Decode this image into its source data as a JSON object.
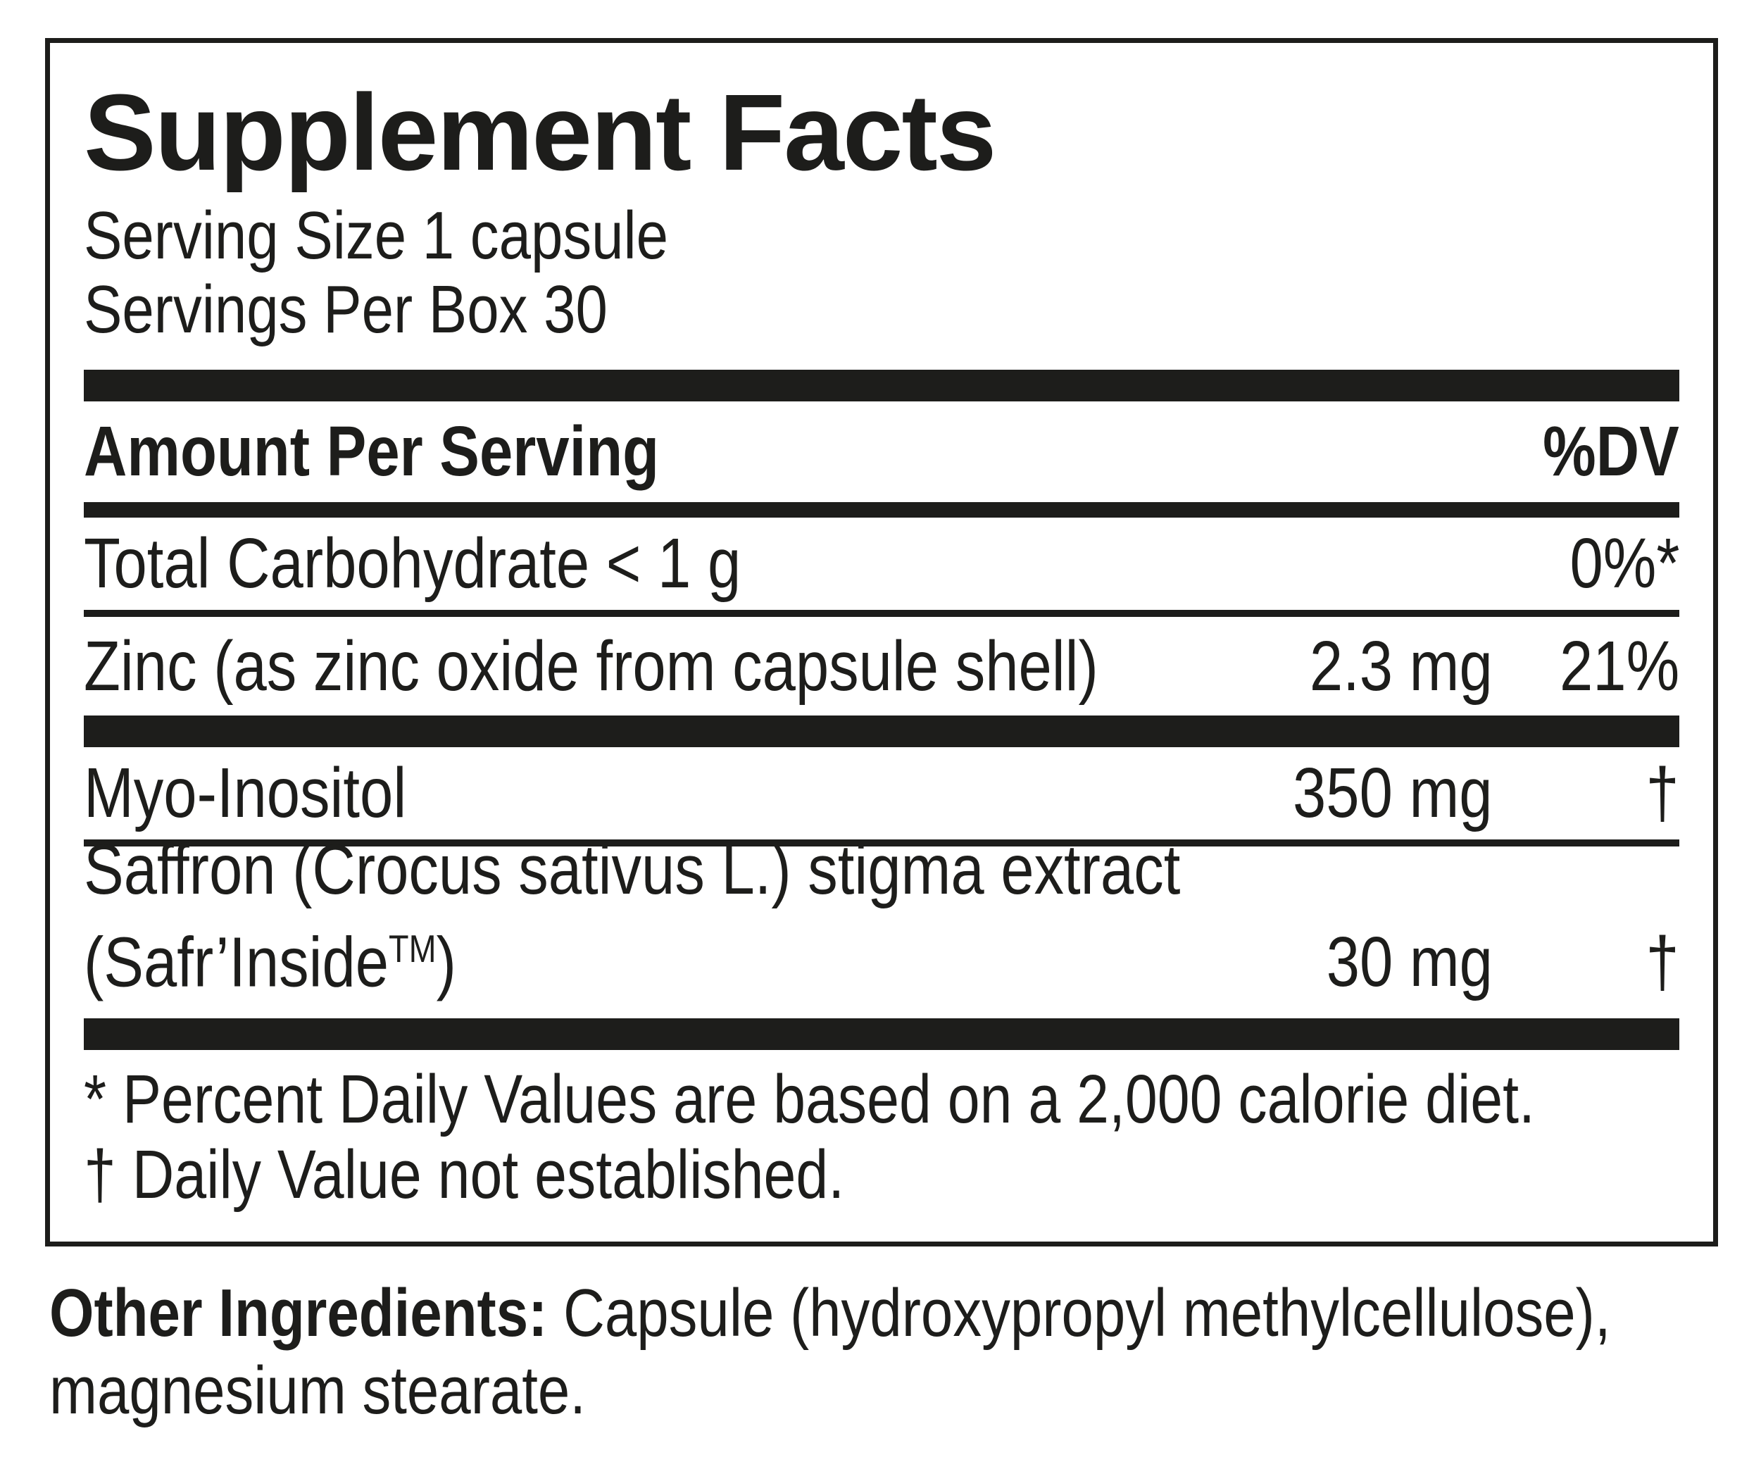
{
  "colors": {
    "ink": "#1d1d1b",
    "background": "#ffffff"
  },
  "panel": {
    "title": "Supplement Facts",
    "serving_lines": [
      "Serving Size 1 capsule",
      "Servings Per Box 30"
    ],
    "header": {
      "amount_per_serving": "Amount Per Serving",
      "dv": "%DV"
    },
    "rows": [
      {
        "name": "Total Carbohydrate < 1 g",
        "amount": "",
        "dv": "0%*"
      },
      {
        "name": "Zinc (as zinc oxide from capsule shell)",
        "amount": "2.3 mg",
        "dv": "21%"
      },
      {
        "name": "Myo-Inositol",
        "amount": "350 mg",
        "dv": "†"
      },
      {
        "name_line1": "Saffron (Crocus sativus L.) stigma extract",
        "name_line2_prefix": "(Safr’Inside",
        "name_line2_tm": "TM",
        "name_line2_suffix": ")",
        "amount": "30 mg",
        "dv": "†"
      }
    ],
    "footnotes": [
      "* Percent Daily Values are based on a 2,000 calorie diet.",
      "† Daily Value not established."
    ]
  },
  "other_ingredients": {
    "label": "Other Ingredients:",
    "line1_rest": " Capsule (hydroxypropyl methylcellulose),",
    "line2": "magnesium stearate."
  }
}
